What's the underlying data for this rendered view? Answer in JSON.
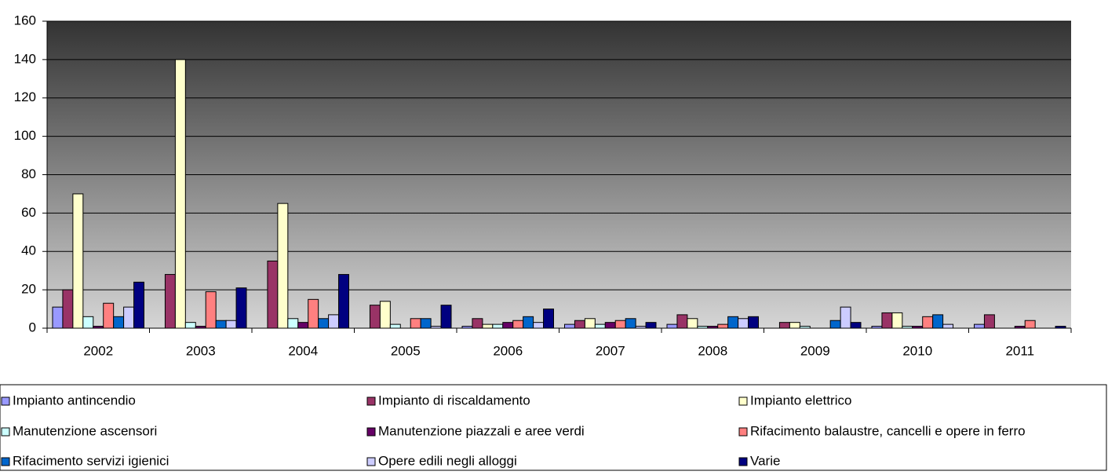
{
  "chart_data": {
    "type": "bar",
    "categories": [
      "2002",
      "2003",
      "2004",
      "2005",
      "2006",
      "2007",
      "2008",
      "2009",
      "2010",
      "2011"
    ],
    "series": [
      {
        "name": "Impianto antincendio",
        "color": "#9999ff",
        "values": [
          11,
          0,
          0,
          0,
          1,
          2,
          2,
          0,
          1,
          2
        ]
      },
      {
        "name": "Impianto di riscaldamento",
        "color": "#993366",
        "values": [
          20,
          28,
          35,
          12,
          5,
          4,
          7,
          3,
          8,
          7
        ]
      },
      {
        "name": "Impianto elettrico",
        "color": "#ffffcc",
        "values": [
          70,
          140,
          65,
          14,
          2,
          5,
          5,
          3,
          8,
          0
        ]
      },
      {
        "name": "Manutenzione ascensori",
        "color": "#ccffff",
        "values": [
          6,
          3,
          5,
          2,
          2,
          2,
          1,
          1,
          1,
          0
        ]
      },
      {
        "name": "Manutenzione piazzali e aree verdi",
        "color": "#660066",
        "values": [
          1,
          1,
          3,
          0,
          3,
          3,
          1,
          0,
          1,
          1
        ]
      },
      {
        "name": "Rifacimento balaustre, cancelli e opere in ferro",
        "color": "#ff8080",
        "values": [
          13,
          19,
          15,
          5,
          4,
          4,
          2,
          0,
          6,
          4
        ]
      },
      {
        "name": "Rifacimento servizi igienici",
        "color": "#0066cc",
        "values": [
          6,
          4,
          5,
          5,
          6,
          5,
          6,
          4,
          7,
          0
        ]
      },
      {
        "name": "Opere edili negli alloggi",
        "color": "#ccccff",
        "values": [
          11,
          4,
          7,
          1,
          3,
          1,
          5,
          11,
          2,
          0
        ]
      },
      {
        "name": "Varie",
        "color": "#000080",
        "values": [
          24,
          21,
          28,
          12,
          10,
          3,
          6,
          3,
          0,
          1
        ]
      }
    ],
    "ylim": [
      0,
      160
    ],
    "yticks": [
      0,
      20,
      40,
      60,
      80,
      100,
      120,
      140,
      160
    ],
    "grid": true,
    "legend_position": "bottom"
  }
}
